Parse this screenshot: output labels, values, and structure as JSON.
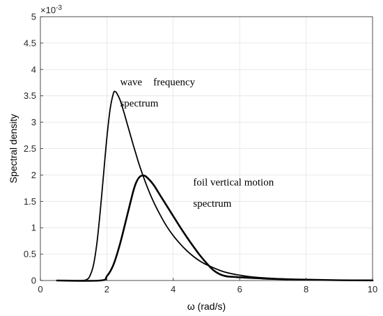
{
  "chart_data": {
    "type": "line",
    "title": "",
    "xlabel": "ω (rad/s)",
    "ylabel": "Spectral density",
    "y_exponent_label": "×10",
    "y_exponent_power": "-3",
    "xlim": [
      0,
      10
    ],
    "ylim": [
      0,
      5
    ],
    "x_ticks": [
      "0",
      "2",
      "4",
      "6",
      "8",
      "10"
    ],
    "y_ticks": [
      "0",
      "0.5",
      "1",
      "1.5",
      "2",
      "2.5",
      "3",
      "3.5",
      "4",
      "4.5",
      "5"
    ],
    "grid": true,
    "annotations": [
      {
        "text": "wave",
        "x": 2.4,
        "y": 3.7
      },
      {
        "text": "frequency",
        "x": 3.4,
        "y": 3.7
      },
      {
        "text": "spectrum",
        "x": 2.4,
        "y": 3.3
      },
      {
        "text": "foil vertical motion",
        "x": 4.6,
        "y": 1.8
      },
      {
        "text": "spectrum",
        "x": 4.6,
        "y": 1.4
      }
    ],
    "series": [
      {
        "x": [
          0.5,
          1.2,
          1.4,
          1.5,
          1.6,
          1.7,
          1.8,
          1.9,
          2.0,
          2.1,
          2.2,
          2.25,
          2.3,
          2.4,
          2.5,
          2.6,
          2.7,
          2.8,
          2.9,
          3.0,
          3.2,
          3.4,
          3.6,
          3.8,
          4.0,
          4.2,
          4.4,
          4.6,
          4.8,
          5.0,
          5.5,
          6.0,
          6.5,
          7.0,
          8.0,
          9.0,
          10.0
        ],
        "values": [
          0,
          0,
          0.02,
          0.1,
          0.3,
          0.7,
          1.3,
          2.0,
          2.7,
          3.25,
          3.55,
          3.58,
          3.55,
          3.42,
          3.22,
          3.0,
          2.78,
          2.56,
          2.35,
          2.15,
          1.8,
          1.5,
          1.25,
          1.03,
          0.85,
          0.7,
          0.57,
          0.46,
          0.37,
          0.3,
          0.17,
          0.1,
          0.06,
          0.04,
          0.015,
          0.005,
          0.002
        ]
      },
      {
        "x": [
          0.5,
          1.8,
          2.0,
          2.2,
          2.4,
          2.6,
          2.8,
          2.9,
          3.0,
          3.1,
          3.2,
          3.4,
          3.6,
          3.8,
          4.0,
          4.2,
          4.4,
          4.6,
          4.8,
          5.0,
          5.2,
          5.4,
          5.6,
          5.8,
          6.0,
          6.5,
          7.0,
          8.0,
          9.0,
          10.0
        ],
        "values": [
          0,
          0,
          0.08,
          0.3,
          0.7,
          1.2,
          1.7,
          1.88,
          1.97,
          1.99,
          1.96,
          1.82,
          1.62,
          1.42,
          1.22,
          1.02,
          0.83,
          0.65,
          0.48,
          0.33,
          0.2,
          0.12,
          0.08,
          0.07,
          0.06,
          0.045,
          0.03,
          0.015,
          0.005,
          0.002
        ]
      }
    ]
  }
}
